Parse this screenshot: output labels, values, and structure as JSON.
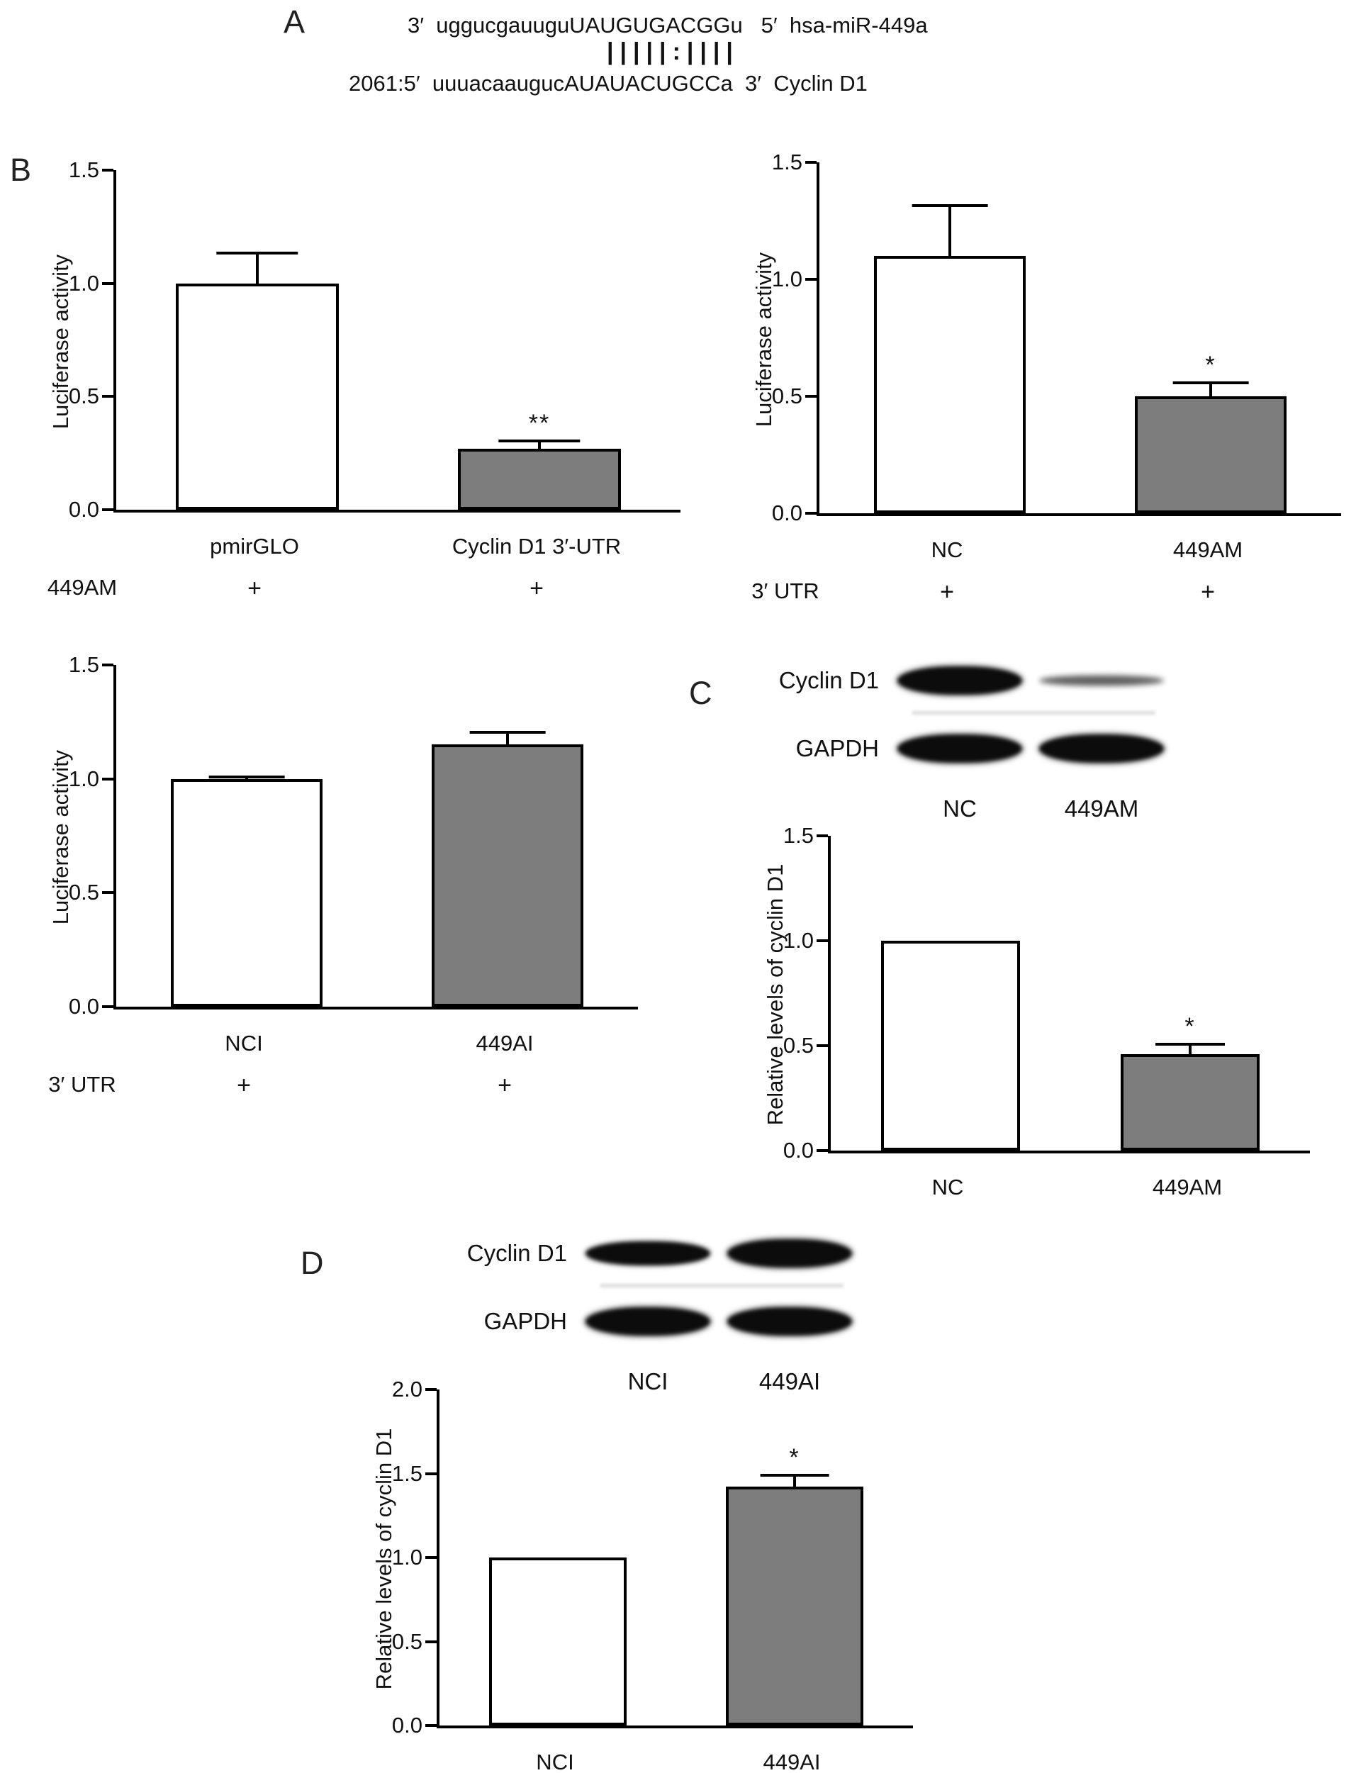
{
  "figure": {
    "background": "#ffffff",
    "text_color": "#111111",
    "bar_fill_white": "#ffffff",
    "bar_fill_gray": "#7d7d7d"
  },
  "panel_a": {
    "label": "A",
    "mirna_line": "3′  uggucgauuguUAUGUGACGGu   5′  hsa-miR-449a",
    "pairing_line": "|||||:||||",
    "target_line": "2061:5′  uuuacaaugucAUAUACUGCCa  3′  Cyclin D1"
  },
  "panel_b": {
    "label": "B"
  },
  "panel_c": {
    "label": "C",
    "blot": {
      "rows": [
        {
          "label": "Cyclin D1",
          "bands": [
            "strong",
            "weak"
          ]
        },
        {
          "label": "GAPDH",
          "bands": [
            "strong",
            "strong"
          ]
        }
      ],
      "lanes": [
        "NC",
        "449AM"
      ]
    }
  },
  "panel_d": {
    "label": "D",
    "blot": {
      "rows": [
        {
          "label": "Cyclin D1",
          "bands": [
            "medium",
            "strong"
          ]
        },
        {
          "label": "GAPDH",
          "bands": [
            "strong",
            "strong"
          ]
        }
      ],
      "lanes": [
        "NCI",
        "449AI"
      ]
    }
  },
  "chart_data": [
    {
      "panel": "B",
      "type": "bar",
      "title": "",
      "ylabel": "Luciferase activity",
      "ylim": [
        0,
        1.5
      ],
      "yticks": [
        0,
        0.5,
        1,
        1.5
      ],
      "categories": [
        "pmirGLO",
        "Cyclin D1 3′-UTR"
      ],
      "values": [
        1.0,
        0.27
      ],
      "errors": [
        0.14,
        0.04
      ],
      "significance": [
        "",
        "**"
      ],
      "bar_colors": [
        "#ffffff",
        "#7d7d7d"
      ],
      "condition_label": "449AM",
      "condition_marks": [
        "+",
        "+"
      ]
    },
    {
      "panel": "B",
      "type": "bar",
      "title": "",
      "ylabel": "Luciferase activity",
      "ylim": [
        0,
        1.5
      ],
      "yticks": [
        0,
        0.5,
        1,
        1.5
      ],
      "categories": [
        "NC",
        "449AM"
      ],
      "values": [
        1.1,
        0.5
      ],
      "errors": [
        0.22,
        0.065
      ],
      "significance": [
        "",
        "*"
      ],
      "bar_colors": [
        "#ffffff",
        "#7d7d7d"
      ],
      "condition_label": "3′ UTR",
      "condition_marks": [
        "+",
        "+"
      ]
    },
    {
      "panel": "B",
      "type": "bar",
      "title": "",
      "ylabel": "Luciferase activity",
      "ylim": [
        0,
        1.5
      ],
      "yticks": [
        0,
        0.5,
        1,
        1.5
      ],
      "categories": [
        "NCI",
        "449AI"
      ],
      "values": [
        1.0,
        1.15
      ],
      "errors": [
        0.015,
        0.06
      ],
      "significance": [
        "",
        ""
      ],
      "bar_colors": [
        "#ffffff",
        "#7d7d7d"
      ],
      "condition_label": "3′ UTR",
      "condition_marks": [
        "+",
        "+"
      ]
    },
    {
      "panel": "C",
      "type": "bar",
      "title": "",
      "ylabel": "Relative levels of cyclin D1",
      "ylim": [
        0,
        1.5
      ],
      "yticks": [
        0,
        0.5,
        1,
        1.5
      ],
      "categories": [
        "NC",
        "449AM"
      ],
      "values": [
        1.0,
        0.46
      ],
      "errors": [
        0,
        0.055
      ],
      "significance": [
        "",
        "*"
      ],
      "bar_colors": [
        "#ffffff",
        "#7d7d7d"
      ]
    },
    {
      "panel": "D",
      "type": "bar",
      "title": "",
      "ylabel": "Relative levels of cyclin D1",
      "ylim": [
        0,
        2
      ],
      "yticks": [
        0,
        0.5,
        1,
        1.5,
        2
      ],
      "categories": [
        "NCI",
        "449AI"
      ],
      "values": [
        1.0,
        1.42
      ],
      "errors": [
        0,
        0.08
      ],
      "significance": [
        "",
        "*"
      ],
      "bar_colors": [
        "#ffffff",
        "#7d7d7d"
      ]
    }
  ]
}
